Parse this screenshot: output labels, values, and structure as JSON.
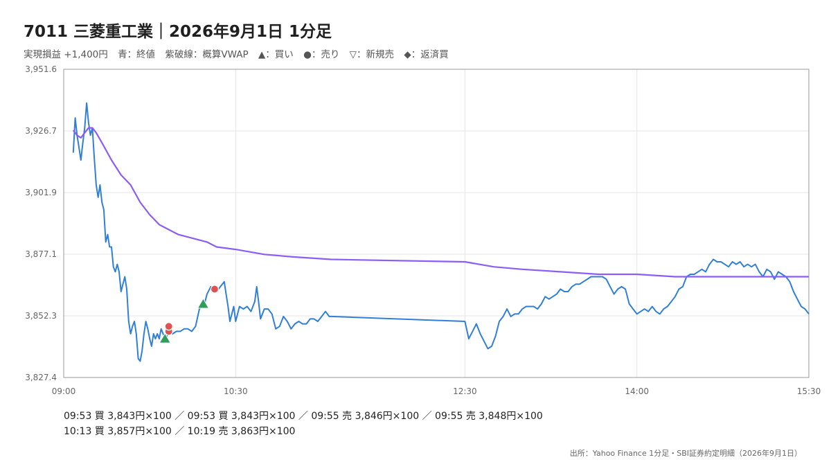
{
  "header": {
    "title": "7011 三菱重工業｜2026年9月1日 1分足",
    "legend_items": [
      "実現損益 +1,400円",
      "青：終値",
      "紫破線：概算VWAP",
      "▲：買い",
      "●：売り",
      "▽：新規売",
      "◆：返済買"
    ]
  },
  "trades": {
    "line1": "09:53 買 3,843円×100 ／ 09:53 買 3,843円×100 ／ 09:55 売 3,846円×100 ／ 09:55 売 3,848円×100",
    "line2": "10:13 買 3,857円×100 ／ 10:19 売 3,863円×100"
  },
  "source": "出所：Yahoo Finance 1分足・SBI証券約定明細（2026年9月1日）",
  "chart_data": {
    "type": "line",
    "x_axis": {
      "min": "09:00",
      "max": "15:30",
      "ticks": [
        "09:00",
        "10:30",
        "12:30",
        "14:00",
        "15:30"
      ]
    },
    "y_axis": {
      "min": 3827.4,
      "max": 3951.6,
      "ticks": [
        "3,827.4",
        "3,852.3",
        "3,877.1",
        "3,901.9",
        "3,926.7",
        "3,951.6"
      ]
    },
    "grid": true,
    "colors": {
      "close": "#2f7fd8",
      "vwap": "#8b5cf6",
      "buy": "#2e9e5b",
      "sell": "#e05252",
      "grid": "#e4e4e4",
      "axis": "#999999"
    },
    "series": [
      {
        "name": "終値",
        "points": [
          [
            "09:05",
            3918
          ],
          [
            "09:06",
            3932
          ],
          [
            "09:07",
            3925
          ],
          [
            "09:08",
            3920
          ],
          [
            "09:09",
            3915
          ],
          [
            "09:10",
            3922
          ],
          [
            "09:11",
            3928
          ],
          [
            "09:12",
            3938
          ],
          [
            "09:13",
            3930
          ],
          [
            "09:14",
            3925
          ],
          [
            "09:15",
            3928
          ],
          [
            "09:16",
            3916
          ],
          [
            "09:17",
            3905
          ],
          [
            "09:18",
            3900
          ],
          [
            "09:19",
            3905
          ],
          [
            "09:20",
            3898
          ],
          [
            "09:21",
            3895
          ],
          [
            "09:22",
            3882
          ],
          [
            "09:23",
            3885
          ],
          [
            "09:24",
            3880
          ],
          [
            "09:25",
            3880
          ],
          [
            "09:26",
            3872
          ],
          [
            "09:27",
            3870
          ],
          [
            "09:28",
            3873
          ],
          [
            "09:29",
            3870
          ],
          [
            "09:30",
            3862
          ],
          [
            "09:31",
            3865
          ],
          [
            "09:32",
            3868
          ],
          [
            "09:33",
            3863
          ],
          [
            "09:34",
            3850
          ],
          [
            "09:35",
            3845
          ],
          [
            "09:36",
            3848
          ],
          [
            "09:37",
            3850
          ],
          [
            "09:38",
            3845
          ],
          [
            "09:39",
            3835
          ],
          [
            "09:40",
            3834
          ],
          [
            "09:41",
            3838
          ],
          [
            "09:42",
            3845
          ],
          [
            "09:43",
            3850
          ],
          [
            "09:44",
            3847
          ],
          [
            "09:45",
            3843
          ],
          [
            "09:46",
            3840
          ],
          [
            "09:47",
            3845
          ],
          [
            "09:48",
            3843
          ],
          [
            "09:49",
            3845
          ],
          [
            "09:50",
            3843
          ],
          [
            "09:51",
            3847
          ],
          [
            "09:52",
            3845
          ],
          [
            "09:53",
            3843
          ],
          [
            "09:54",
            3844
          ],
          [
            "09:55",
            3846
          ],
          [
            "09:57",
            3845
          ],
          [
            "09:59",
            3846
          ],
          [
            "10:01",
            3846
          ],
          [
            "10:03",
            3847
          ],
          [
            "10:05",
            3847
          ],
          [
            "10:07",
            3846
          ],
          [
            "10:09",
            3848
          ],
          [
            "10:11",
            3855
          ],
          [
            "10:13",
            3857
          ],
          [
            "10:14",
            3858
          ],
          [
            "10:15",
            3861
          ],
          [
            "10:17",
            3864
          ],
          [
            "10:19",
            3863
          ],
          [
            "10:20",
            3862
          ],
          [
            "10:22",
            3864
          ],
          [
            "10:24",
            3866
          ],
          [
            "10:25",
            3861
          ],
          [
            "10:26",
            3856
          ],
          [
            "10:27",
            3850
          ],
          [
            "10:28",
            3853
          ],
          [
            "10:29",
            3856
          ],
          [
            "10:30",
            3850
          ],
          [
            "10:32",
            3856
          ],
          [
            "10:34",
            3855
          ],
          [
            "10:36",
            3856
          ],
          [
            "10:38",
            3854
          ],
          [
            "10:40",
            3858
          ],
          [
            "10:41",
            3864
          ],
          [
            "10:42",
            3858
          ],
          [
            "10:43",
            3851
          ],
          [
            "10:45",
            3855
          ],
          [
            "10:47",
            3855
          ],
          [
            "10:49",
            3853
          ],
          [
            "10:51",
            3847
          ],
          [
            "10:53",
            3848
          ],
          [
            "10:55",
            3852
          ],
          [
            "10:57",
            3850
          ],
          [
            "10:59",
            3847
          ],
          [
            "11:01",
            3849
          ],
          [
            "11:03",
            3850
          ],
          [
            "11:05",
            3849
          ],
          [
            "11:07",
            3849
          ],
          [
            "11:09",
            3851
          ],
          [
            "11:11",
            3851
          ],
          [
            "11:13",
            3850
          ],
          [
            "11:15",
            3852
          ],
          [
            "11:17",
            3854
          ],
          [
            "11:19",
            3852
          ],
          [
            "11:20",
            3852
          ],
          [
            "12:30",
            3850
          ],
          [
            "12:32",
            3843
          ],
          [
            "12:34",
            3846
          ],
          [
            "12:36",
            3849
          ],
          [
            "12:38",
            3845
          ],
          [
            "12:40",
            3842
          ],
          [
            "12:42",
            3839
          ],
          [
            "12:44",
            3840
          ],
          [
            "12:46",
            3844
          ],
          [
            "12:48",
            3850
          ],
          [
            "12:50",
            3852
          ],
          [
            "12:52",
            3855
          ],
          [
            "12:54",
            3852
          ],
          [
            "12:56",
            3853
          ],
          [
            "12:58",
            3853
          ],
          [
            "13:00",
            3855
          ],
          [
            "13:02",
            3856
          ],
          [
            "13:04",
            3856
          ],
          [
            "13:06",
            3856
          ],
          [
            "13:08",
            3855
          ],
          [
            "13:10",
            3857
          ],
          [
            "13:12",
            3860
          ],
          [
            "13:14",
            3859
          ],
          [
            "13:16",
            3860
          ],
          [
            "13:18",
            3861
          ],
          [
            "13:20",
            3863
          ],
          [
            "13:22",
            3862
          ],
          [
            "13:24",
            3862
          ],
          [
            "13:26",
            3864
          ],
          [
            "13:28",
            3865
          ],
          [
            "13:30",
            3865
          ],
          [
            "13:32",
            3866
          ],
          [
            "13:34",
            3867
          ],
          [
            "13:36",
            3868
          ],
          [
            "13:38",
            3868
          ],
          [
            "13:40",
            3868
          ],
          [
            "13:42",
            3868
          ],
          [
            "13:44",
            3867
          ],
          [
            "13:46",
            3864
          ],
          [
            "13:48",
            3861
          ],
          [
            "13:50",
            3863
          ],
          [
            "13:52",
            3864
          ],
          [
            "13:54",
            3863
          ],
          [
            "13:56",
            3857
          ],
          [
            "13:58",
            3855
          ],
          [
            "14:00",
            3853
          ],
          [
            "14:02",
            3854
          ],
          [
            "14:04",
            3855
          ],
          [
            "14:06",
            3854
          ],
          [
            "14:08",
            3856
          ],
          [
            "14:10",
            3854
          ],
          [
            "14:12",
            3853
          ],
          [
            "14:14",
            3855
          ],
          [
            "14:16",
            3856
          ],
          [
            "14:18",
            3858
          ],
          [
            "14:20",
            3860
          ],
          [
            "14:22",
            3863
          ],
          [
            "14:24",
            3864
          ],
          [
            "14:26",
            3868
          ],
          [
            "14:28",
            3869
          ],
          [
            "14:30",
            3869
          ],
          [
            "14:32",
            3870
          ],
          [
            "14:34",
            3871
          ],
          [
            "14:36",
            3870
          ],
          [
            "14:38",
            3873
          ],
          [
            "14:40",
            3875
          ],
          [
            "14:42",
            3874
          ],
          [
            "14:44",
            3874
          ],
          [
            "14:46",
            3873
          ],
          [
            "14:48",
            3872
          ],
          [
            "14:50",
            3874
          ],
          [
            "14:52",
            3873
          ],
          [
            "14:54",
            3874
          ],
          [
            "14:56",
            3872
          ],
          [
            "14:58",
            3873
          ],
          [
            "15:00",
            3872
          ],
          [
            "15:02",
            3873
          ],
          [
            "15:04",
            3870
          ],
          [
            "15:06",
            3868
          ],
          [
            "15:08",
            3871
          ],
          [
            "15:10",
            3870
          ],
          [
            "15:12",
            3867
          ],
          [
            "15:14",
            3870
          ],
          [
            "15:16",
            3869
          ],
          [
            "15:18",
            3868
          ],
          [
            "15:20",
            3866
          ],
          [
            "15:22",
            3862
          ],
          [
            "15:24",
            3859
          ],
          [
            "15:26",
            3856
          ],
          [
            "15:28",
            3855
          ],
          [
            "15:30",
            3853
          ]
        ]
      },
      {
        "name": "VWAP",
        "points": [
          [
            "09:05",
            3927
          ],
          [
            "09:07",
            3925
          ],
          [
            "09:09",
            3924
          ],
          [
            "09:11",
            3926
          ],
          [
            "09:13",
            3928
          ],
          [
            "09:15",
            3928
          ],
          [
            "09:17",
            3926
          ],
          [
            "09:20",
            3922
          ],
          [
            "09:25",
            3915
          ],
          [
            "09:30",
            3909
          ],
          [
            "09:35",
            3905
          ],
          [
            "09:40",
            3898
          ],
          [
            "09:45",
            3893
          ],
          [
            "09:50",
            3889
          ],
          [
            "09:55",
            3887
          ],
          [
            "10:00",
            3885
          ],
          [
            "10:05",
            3884
          ],
          [
            "10:10",
            3883
          ],
          [
            "10:15",
            3882
          ],
          [
            "10:20",
            3880
          ],
          [
            "10:30",
            3879
          ],
          [
            "10:45",
            3877
          ],
          [
            "11:00",
            3876
          ],
          [
            "11:20",
            3875
          ],
          [
            "12:30",
            3874
          ],
          [
            "12:45",
            3872
          ],
          [
            "13:00",
            3871
          ],
          [
            "13:20",
            3870
          ],
          [
            "13:40",
            3869
          ],
          [
            "14:00",
            3869
          ],
          [
            "14:20",
            3868
          ],
          [
            "14:40",
            3868
          ],
          [
            "15:00",
            3868
          ],
          [
            "15:30",
            3868
          ]
        ]
      }
    ],
    "markers": [
      {
        "type": "buy",
        "label": "09:53 買",
        "time": "09:53",
        "price": 3843
      },
      {
        "type": "buy",
        "label": "09:53 買",
        "time": "09:53",
        "price": 3843
      },
      {
        "type": "sell",
        "label": "09:55 売",
        "time": "09:55",
        "price": 3846
      },
      {
        "type": "sell",
        "label": "09:55 売",
        "time": "09:55",
        "price": 3848
      },
      {
        "type": "buy",
        "label": "10:13 買",
        "time": "10:13",
        "price": 3857
      },
      {
        "type": "sell",
        "label": "10:19 売",
        "time": "10:19",
        "price": 3863
      }
    ]
  }
}
